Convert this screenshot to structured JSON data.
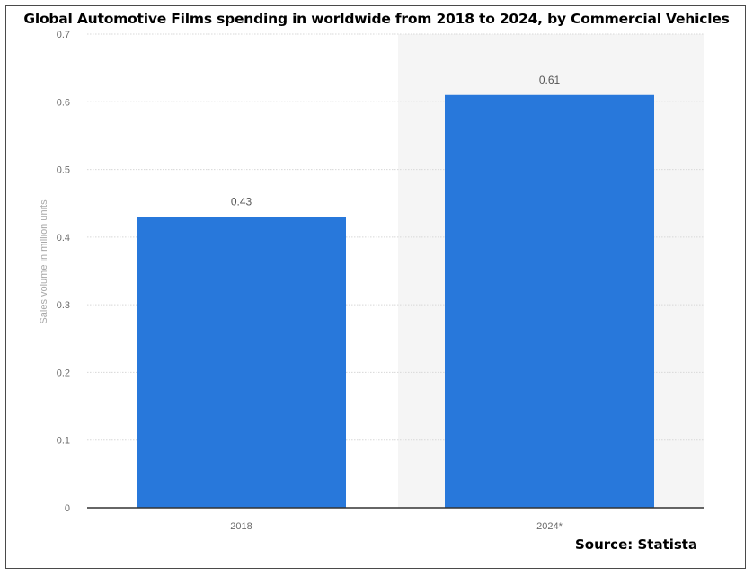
{
  "chart_data": {
    "type": "bar",
    "title": "Global Automotive Films spending in worldwide from 2018 to 2024, by Commercial Vehicles",
    "categories": [
      "2018",
      "2024*"
    ],
    "values": [
      0.43,
      0.61
    ],
    "data_labels": [
      "0.43",
      "0.61"
    ],
    "xlabel": "",
    "ylabel": "Sales volume in million units",
    "ylim": [
      0,
      0.7
    ],
    "yticks": [
      0,
      0.1,
      0.2,
      0.3,
      0.4,
      0.5,
      0.6,
      0.7
    ],
    "ytick_labels": [
      "0",
      "0.1",
      "0.2",
      "0.3",
      "0.4",
      "0.5",
      "0.6",
      "0.7"
    ],
    "grid": true,
    "bar_color": "#2878db",
    "band_color": "#f5f5f5"
  },
  "footer": {
    "source": "Source: Statista"
  }
}
